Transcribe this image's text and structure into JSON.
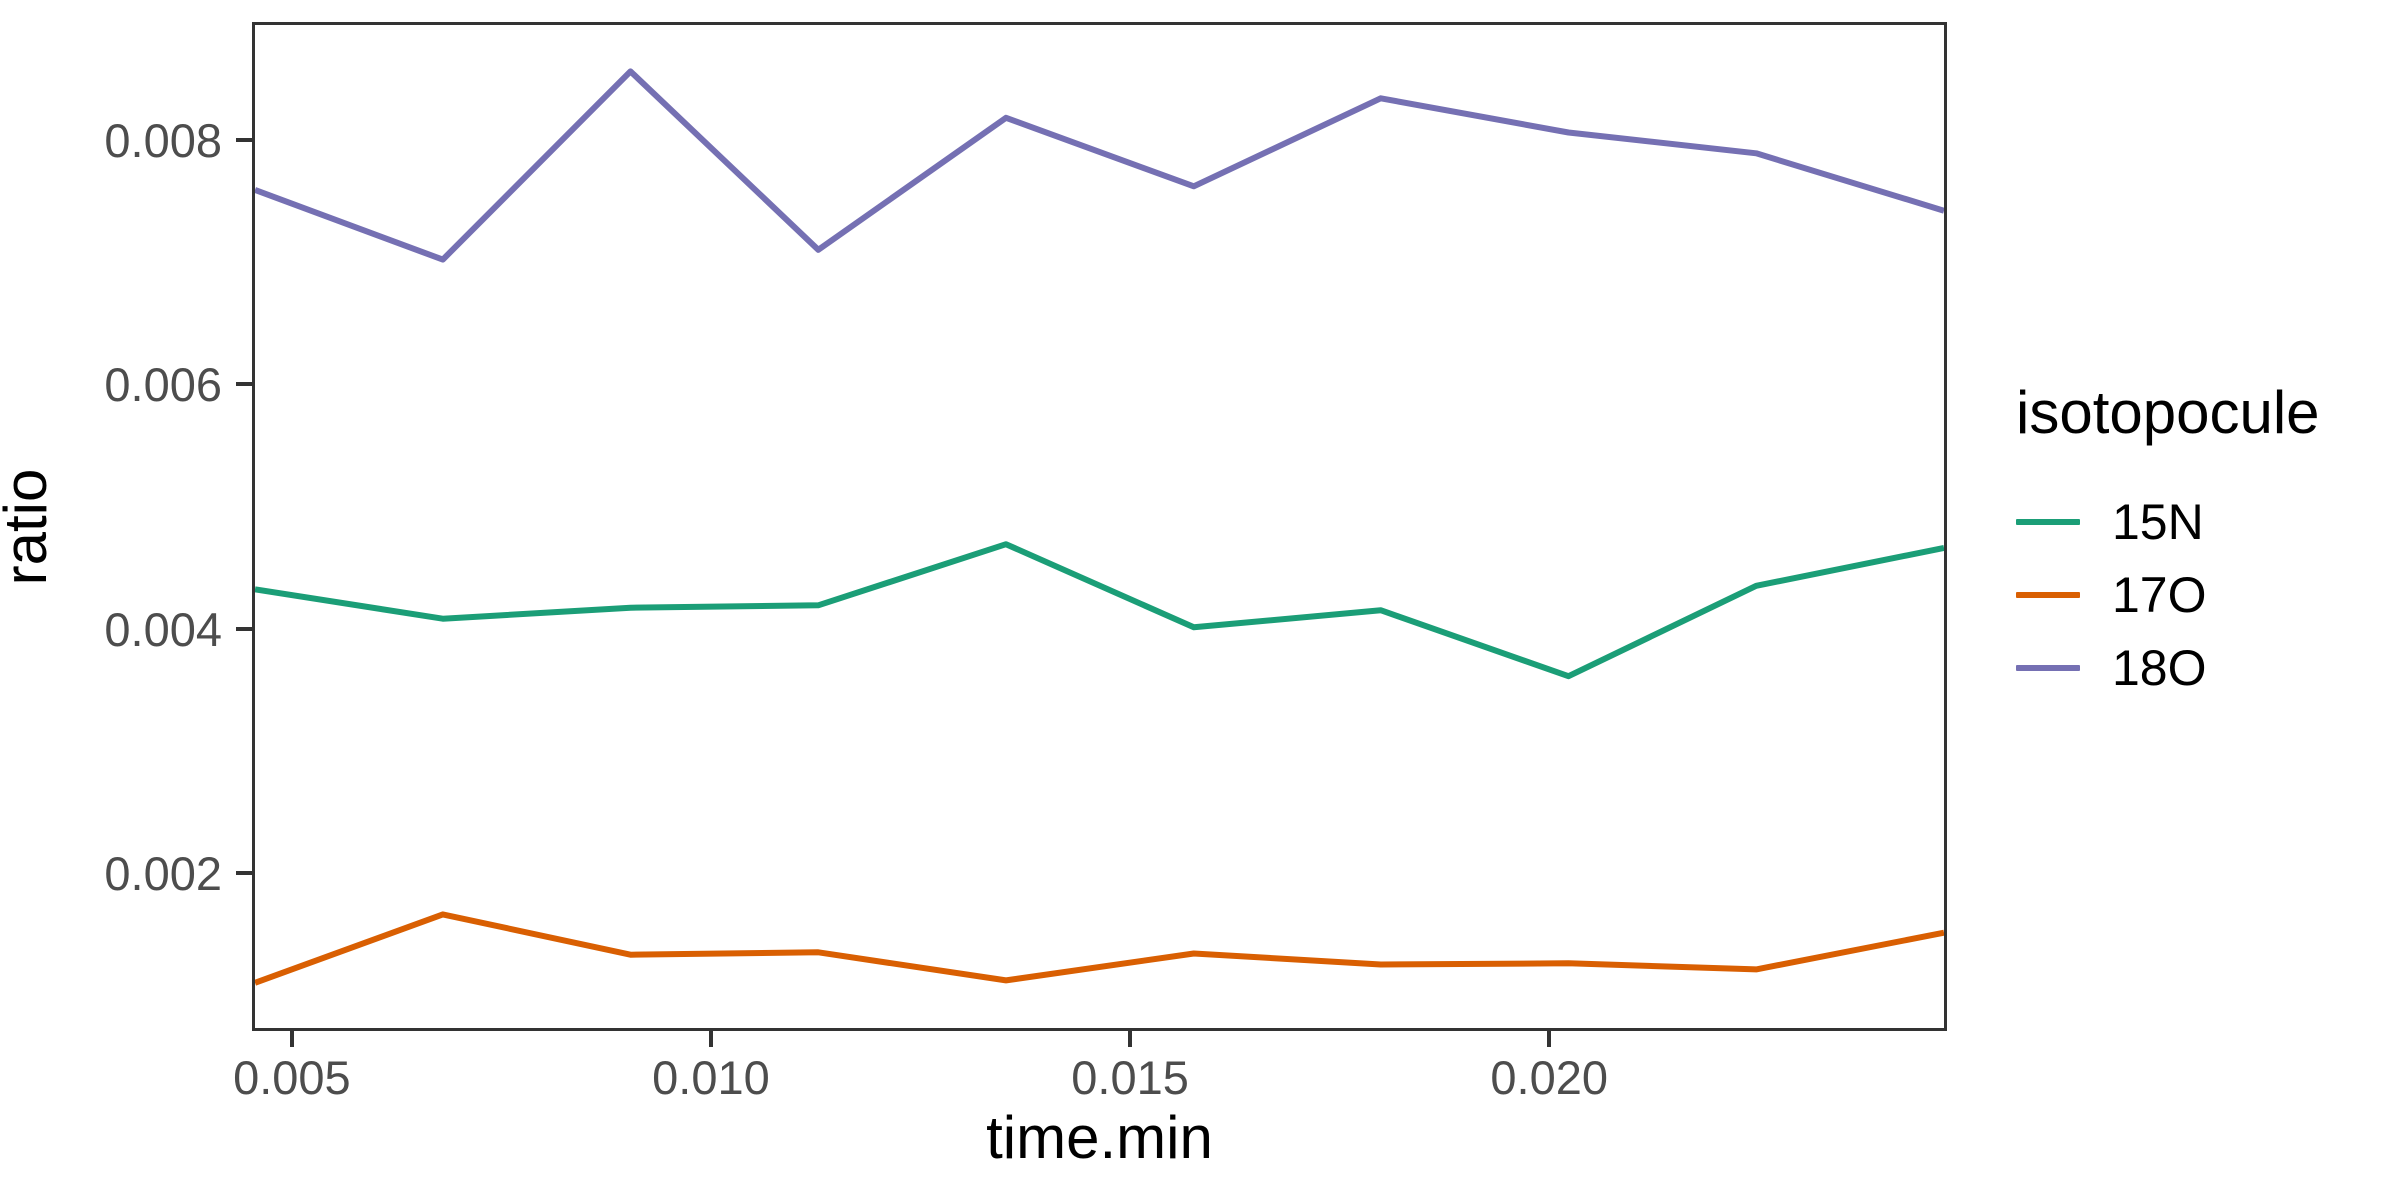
{
  "chart_data": {
    "type": "line",
    "title": "",
    "xlabel": "time.min",
    "ylabel": "ratio",
    "x": [
      0.00456,
      0.0068,
      0.00904,
      0.01128,
      0.01352,
      0.01576,
      0.01799,
      0.02023,
      0.02247,
      0.02471
    ],
    "series": [
      {
        "name": "15N",
        "color": "#1B9E77",
        "values": [
          0.00432,
          0.00408,
          0.00417,
          0.00419,
          0.00469,
          0.00401,
          0.00415,
          0.00361,
          0.00435,
          0.00466
        ]
      },
      {
        "name": "17O",
        "color": "#D95F02",
        "values": [
          0.0011,
          0.00166,
          0.00133,
          0.00135,
          0.00112,
          0.00134,
          0.00125,
          0.00126,
          0.00121,
          0.00151
        ]
      },
      {
        "name": "18O",
        "color": "#7570B3",
        "values": [
          0.00759,
          0.00702,
          0.00856,
          0.0071,
          0.00818,
          0.00762,
          0.00834,
          0.00806,
          0.00789,
          0.00742
        ]
      }
    ],
    "xlim": [
      0.00456,
      0.02471
    ],
    "ylim": [
      0.00073,
      0.00894
    ],
    "x_ticks": {
      "values": [
        0.005,
        0.01,
        0.015,
        0.02
      ],
      "labels": [
        "0.005",
        "0.010",
        "0.015",
        "0.020"
      ]
    },
    "y_ticks": {
      "values": [
        0.002,
        0.004,
        0.006,
        0.008
      ],
      "labels": [
        "0.002",
        "0.004",
        "0.006",
        "0.008"
      ]
    },
    "grid": "off",
    "line_width": 6,
    "legend": {
      "title": "isotopocule",
      "position": "right"
    },
    "colors": {
      "axis_text": "#4d4d4d",
      "axis_title": "#000000",
      "panel_border": "#333333",
      "background": "#ffffff"
    }
  }
}
